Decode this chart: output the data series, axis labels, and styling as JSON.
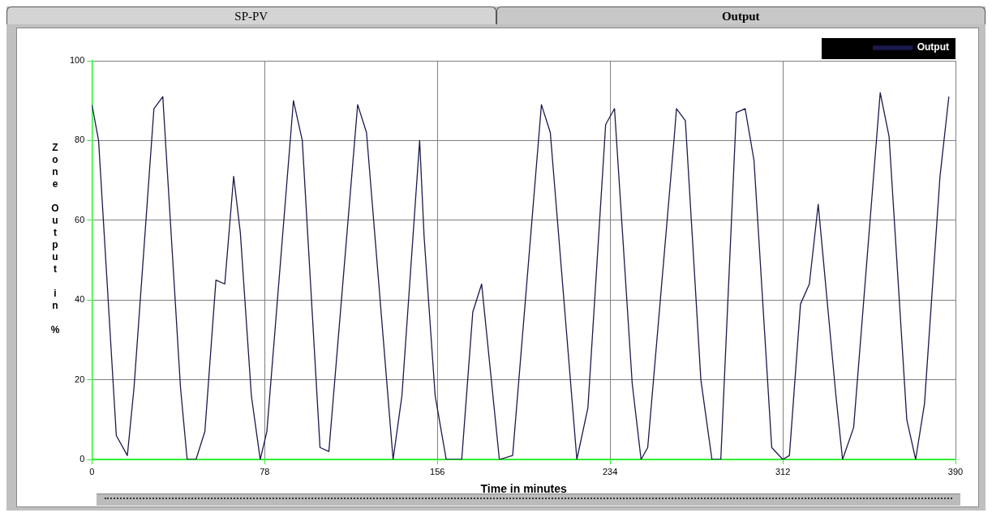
{
  "chart_data": {
    "type": "line",
    "xlabel": "Time in minutes",
    "ylabel": "Zone Output in %",
    "annotations": [
      "SP-PV",
      "Output"
    ],
    "x": [
      0,
      3,
      11,
      16,
      19,
      28,
      32,
      40,
      43,
      47,
      51,
      56,
      60,
      64,
      67,
      72,
      76,
      79,
      91,
      95,
      103,
      107,
      120,
      124,
      136,
      140,
      148,
      150,
      155,
      160,
      167,
      172,
      176,
      184,
      190,
      203,
      207,
      219,
      224,
      232,
      236,
      244,
      248,
      251,
      263,
      264,
      268,
      275,
      280,
      284,
      291,
      295,
      299,
      307,
      312,
      315,
      320,
      324,
      328,
      336,
      339,
      344,
      356,
      360,
      368,
      372,
      376,
      383,
      387
    ],
    "series": [
      {
        "name": "Output",
        "color": "#1a1a4e",
        "values": [
          89,
          80,
          6,
          1,
          18,
          88,
          91,
          18,
          0,
          0,
          7,
          45,
          44,
          71,
          57,
          16,
          0,
          7,
          90,
          80,
          3,
          2,
          89,
          82,
          0,
          16,
          80,
          56,
          16,
          0,
          0,
          37,
          44,
          0,
          1,
          89,
          82,
          0,
          13,
          84,
          88,
          19,
          0,
          3,
          81,
          88,
          85,
          20,
          0,
          0,
          87,
          88,
          75,
          3,
          0,
          1,
          39,
          44,
          64,
          16,
          0,
          8,
          92,
          81,
          10,
          0,
          14,
          71,
          91
        ]
      }
    ],
    "xlim": [
      0,
      390
    ],
    "xticks": [
      0,
      78,
      156,
      234,
      312,
      390
    ],
    "ylim": [
      0,
      100
    ],
    "yticks": [
      0,
      20,
      40,
      60,
      80,
      100
    ],
    "grid": true,
    "legend": "top right",
    "marker": "none",
    "line_style": "solid"
  }
}
